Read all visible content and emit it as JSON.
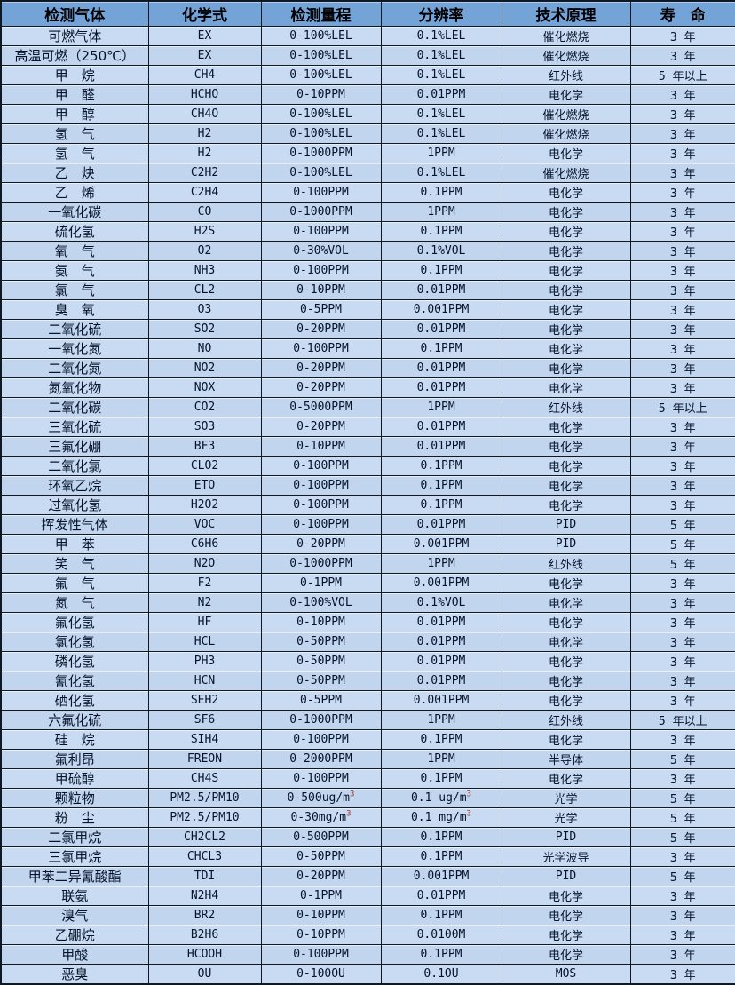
{
  "colors": {
    "header_bg": "#74a3d8",
    "row_bg": "#c9dbf2",
    "row_bg_alt": "#c2d5ee",
    "grid": "#101826",
    "superscript": "#a0342b",
    "header_text": "#000000",
    "body_text": "#06142b"
  },
  "table": {
    "columns": [
      {
        "key": "gas",
        "label": "检测气体"
      },
      {
        "key": "formula",
        "label": "化学式"
      },
      {
        "key": "range",
        "label": "检测量程"
      },
      {
        "key": "resolution",
        "label": "分辨率"
      },
      {
        "key": "principle",
        "label": "技术原理"
      },
      {
        "key": "lifespan",
        "label": "寿　命"
      }
    ],
    "rows": [
      [
        "可燃气体",
        "EX",
        "0-100%LEL",
        "0.1%LEL",
        "催化燃烧",
        "3 年"
      ],
      [
        "高温可燃（250℃）",
        "EX",
        "0-100%LEL",
        "0.1%LEL",
        "催化燃烧",
        "3 年"
      ],
      [
        "甲　烷",
        "CH4",
        "0-100%LEL",
        "0.1%LEL",
        "红外线",
        "5 年以上"
      ],
      [
        "甲　醛",
        "HCHO",
        "0-10PPM",
        "0.01PPM",
        "电化学",
        "3 年"
      ],
      [
        "甲　醇",
        "CH4O",
        "0-100%LEL",
        "0.1%LEL",
        "催化燃烧",
        "3 年"
      ],
      [
        "氢　气",
        "H2",
        "0-100%LEL",
        "0.1%LEL",
        "催化燃烧",
        "3 年"
      ],
      [
        "氢　气",
        "H2",
        "0-1000PPM",
        "1PPM",
        "电化学",
        "3 年"
      ],
      [
        "乙　炔",
        "C2H2",
        "0-100%LEL",
        "0.1%LEL",
        "催化燃烧",
        "3 年"
      ],
      [
        "乙　烯",
        "C2H4",
        "0-100PPM",
        "0.1PPM",
        "电化学",
        "3 年"
      ],
      [
        "一氧化碳",
        "CO",
        "0-1000PPM",
        "1PPM",
        "电化学",
        "3 年"
      ],
      [
        "硫化氢",
        "H2S",
        "0-100PPM",
        "0.1PPM",
        "电化学",
        "3 年"
      ],
      [
        "氧　气",
        "O2",
        "0-30%VOL",
        "0.1%VOL",
        "电化学",
        "3 年"
      ],
      [
        "氨　气",
        "NH3",
        "0-100PPM",
        "0.1PPM",
        "电化学",
        "3 年"
      ],
      [
        "氯　气",
        "CL2",
        "0-10PPM",
        "0.01PPM",
        "电化学",
        "3 年"
      ],
      [
        "臭　氧",
        "O3",
        "0-5PPM",
        "0.001PPM",
        "电化学",
        "3 年"
      ],
      [
        "二氧化硫",
        "SO2",
        "0-20PPM",
        "0.01PPM",
        "电化学",
        "3 年"
      ],
      [
        "一氧化氮",
        "NO",
        "0-100PPM",
        "0.1PPM",
        "电化学",
        "3 年"
      ],
      [
        "二氧化氮",
        "NO2",
        "0-20PPM",
        "0.01PPM",
        "电化学",
        "3 年"
      ],
      [
        "氮氧化物",
        "NOX",
        "0-20PPM",
        "0.01PPM",
        "电化学",
        "3 年"
      ],
      [
        "二氧化碳",
        "CO2",
        "0-5000PPM",
        "1PPM",
        "红外线",
        "5 年以上"
      ],
      [
        "三氧化硫",
        "SO3",
        "0-20PPM",
        "0.01PPM",
        "电化学",
        "3 年"
      ],
      [
        "三氟化硼",
        "BF3",
        "0-10PPM",
        "0.01PPM",
        "电化学",
        "3 年"
      ],
      [
        "二氧化氯",
        "CLO2",
        "0-100PPM",
        "0.1PPM",
        "电化学",
        "3 年"
      ],
      [
        "环氧乙烷",
        "ETO",
        "0-100PPM",
        "0.1PPM",
        "电化学",
        "3 年"
      ],
      [
        "过氧化氢",
        "H2O2",
        "0-100PPM",
        "0.1PPM",
        "电化学",
        "3 年"
      ],
      [
        "挥发性气体",
        "VOC",
        "0-100PPM",
        "0.01PPM",
        "PID",
        "5 年"
      ],
      [
        "甲　苯",
        "C6H6",
        "0-20PPM",
        "0.001PPM",
        "PID",
        "5 年"
      ],
      [
        "笑　气",
        "N2O",
        "0-1000PPM",
        "1PPM",
        "红外线",
        "5 年"
      ],
      [
        "氟　气",
        "F2",
        "0-1PPM",
        "0.001PPM",
        "电化学",
        "3 年"
      ],
      [
        "氮　气",
        "N2",
        "0-100%VOL",
        "0.1%VOL",
        "电化学",
        "3 年"
      ],
      [
        "氟化氢",
        "HF",
        "0-10PPM",
        "0.01PPM",
        "电化学",
        "3 年"
      ],
      [
        "氯化氢",
        "HCL",
        "0-50PPM",
        "0.01PPM",
        "电化学",
        "3 年"
      ],
      [
        "磷化氢",
        "PH3",
        "0-50PPM",
        "0.01PPM",
        "电化学",
        "3 年"
      ],
      [
        "氰化氢",
        "HCN",
        "0-50PPM",
        "0.01PPM",
        "电化学",
        "3 年"
      ],
      [
        "硒化氢",
        "SEH2",
        "0-5PPM",
        "0.001PPM",
        "电化学",
        "3 年"
      ],
      [
        "六氟化硫",
        "SF6",
        "0-1000PPM",
        "1PPM",
        "红外线",
        "5 年以上"
      ],
      [
        "硅　烷",
        "SIH4",
        "0-100PPM",
        "0.1PPM",
        "电化学",
        "3 年"
      ],
      [
        "氟利昂",
        "FREON",
        "0-2000PPM",
        "1PPM",
        "半导体",
        "5 年"
      ],
      [
        "甲硫醇",
        "CH4S",
        "0-100PPM",
        "0.1PPM",
        "电化学",
        "3 年"
      ],
      [
        "颗粒物",
        "PM2.5/PM10",
        "0-500ug/m³",
        "0.1 ug/m³",
        "光学",
        "5 年"
      ],
      [
        "粉　尘",
        "PM2.5/PM10",
        "0-30mg/m³",
        "0.1 mg/m³",
        "光学",
        "5 年"
      ],
      [
        "二氯甲烷",
        "CH2CL2",
        "0-500PPM",
        "0.1PPM",
        "PID",
        "5 年"
      ],
      [
        "三氯甲烷",
        "CHCL3",
        "0-50PPM",
        "0.1PPM",
        "光学波导",
        "3 年"
      ],
      [
        "甲苯二异氰酸酯",
        "TDI",
        "0-20PPM",
        "0.001PPM",
        "PID",
        "5 年"
      ],
      [
        "联氨",
        "N2H4",
        "0-1PPM",
        "0.01PPM",
        "电化学",
        "3 年"
      ],
      [
        "溴气",
        "BR2",
        "0-10PPM",
        "0.1PPM",
        "电化学",
        "3 年"
      ],
      [
        "乙硼烷",
        "B2H6",
        "0-10PPM",
        "0.0100M",
        "电化学",
        "3 年"
      ],
      [
        "甲酸",
        "HCOOH",
        "0-100PPM",
        "0.1PPM",
        "电化学",
        "3 年"
      ],
      [
        "恶臭",
        "OU",
        "0-100OU",
        "0.1OU",
        "MOS",
        "3 年"
      ]
    ]
  }
}
